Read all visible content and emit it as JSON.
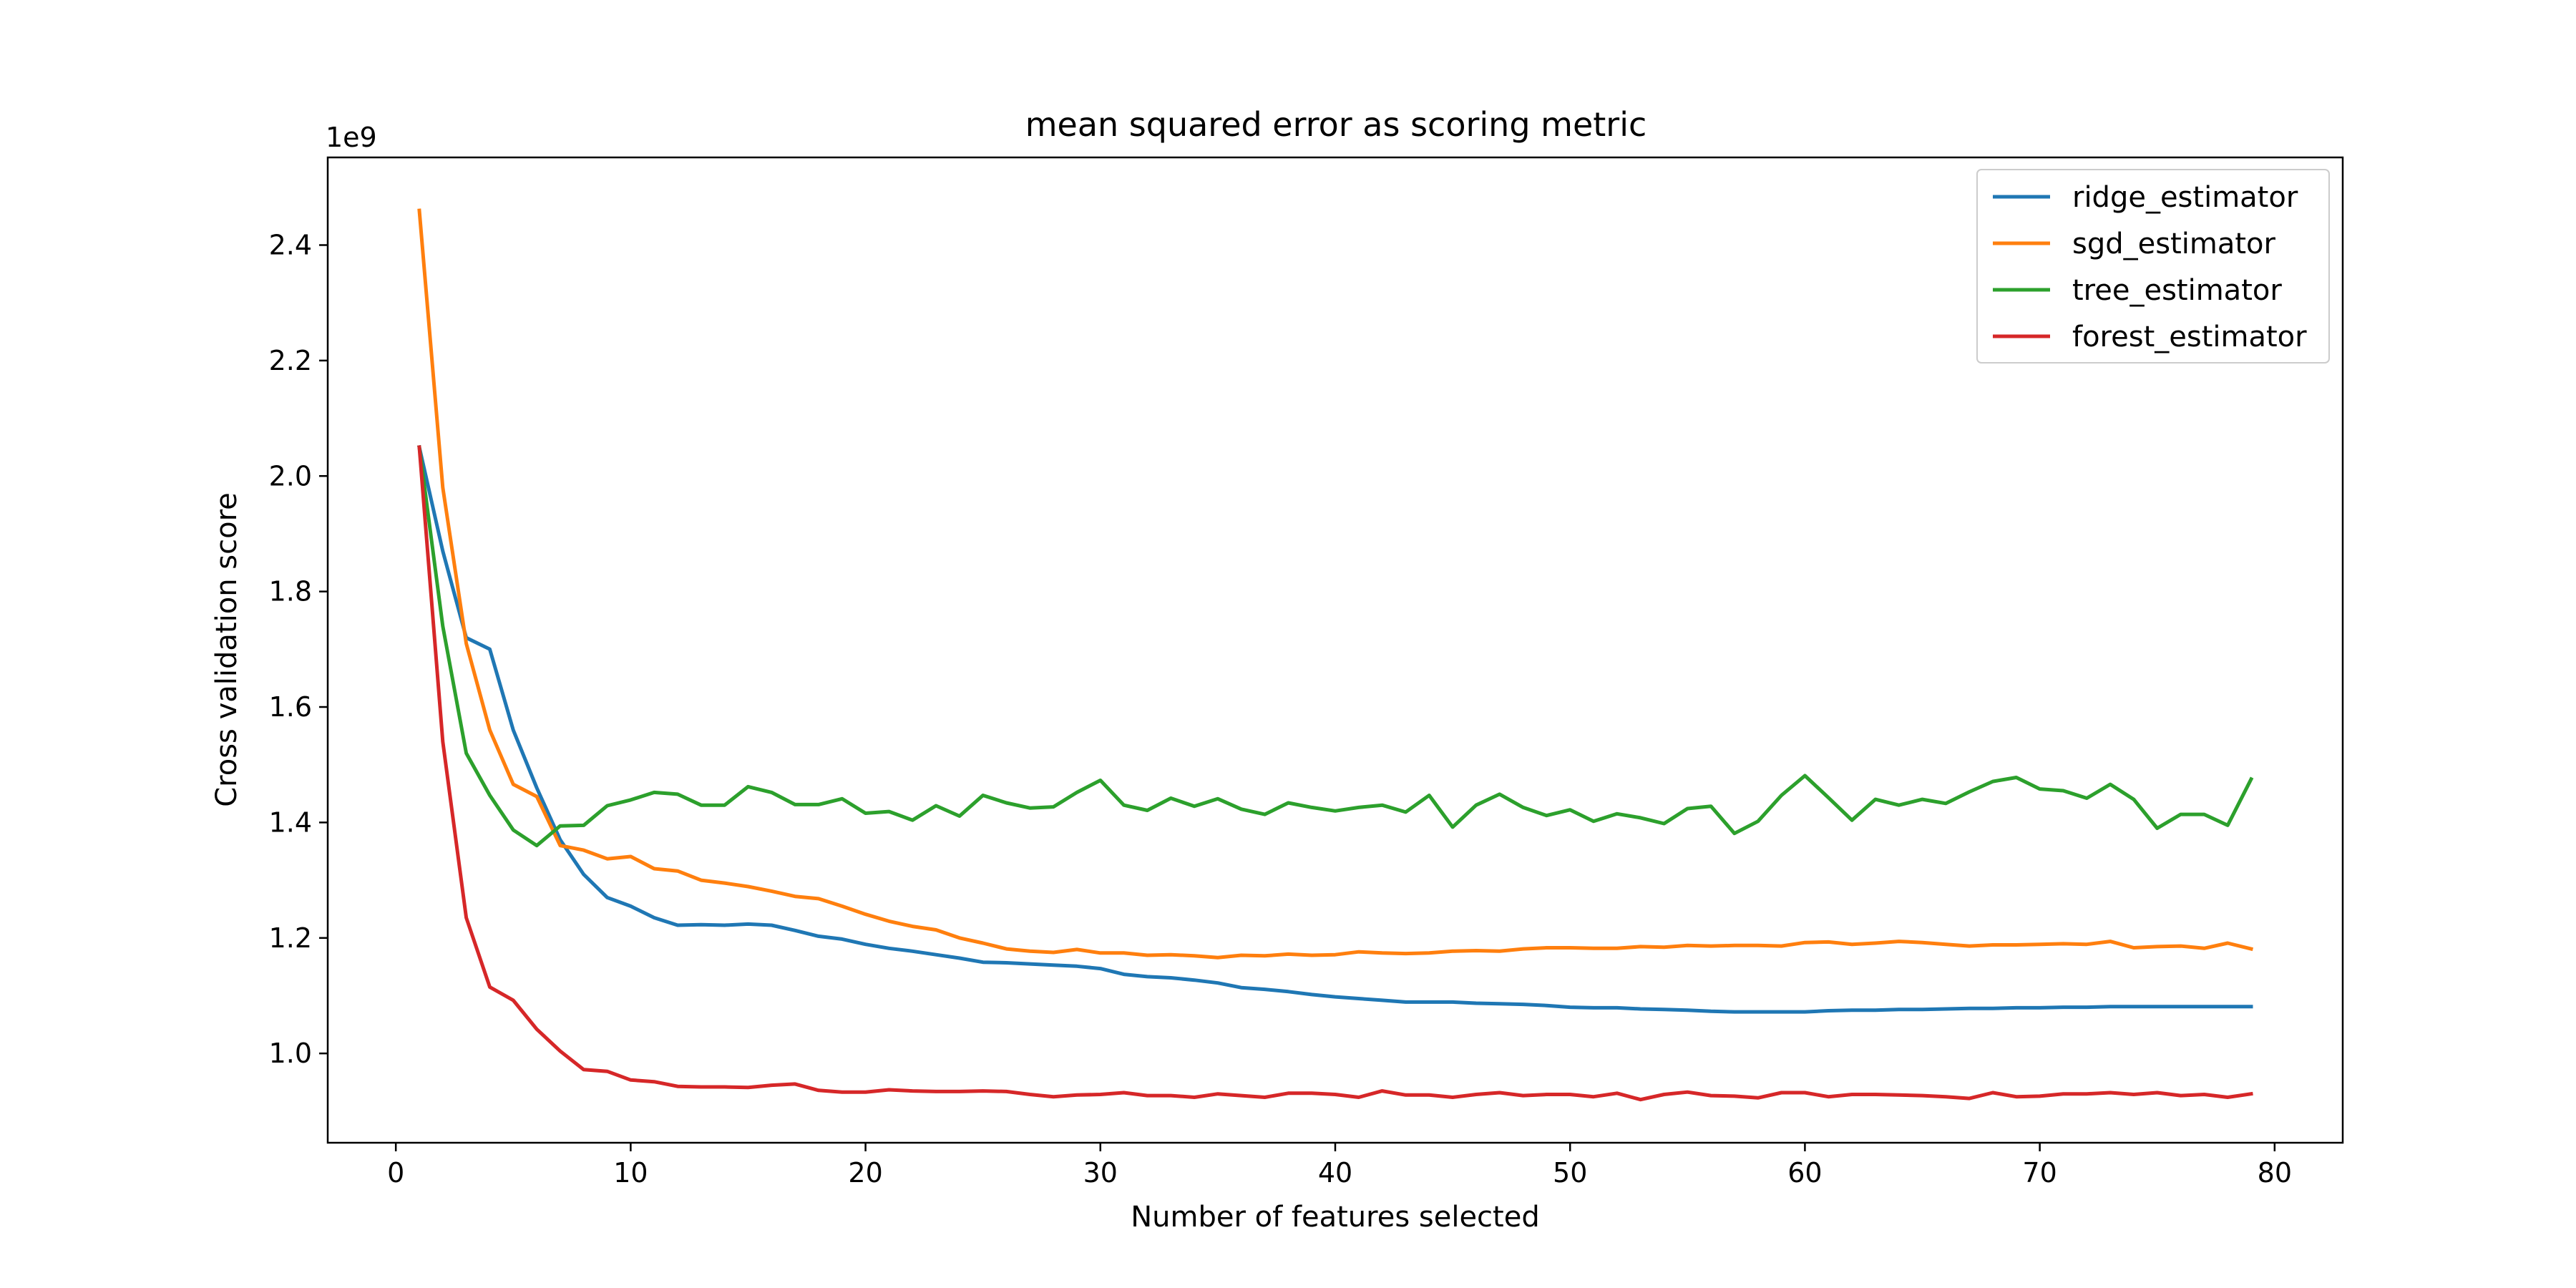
{
  "chart_data": {
    "type": "line",
    "title": "mean squared error as scoring metric",
    "xlabel": "Number of features selected",
    "ylabel": "Cross validation score",
    "y_offset_label": "1e9",
    "xlim": [
      -2.9,
      82.9
    ],
    "ylim": [
      0.8453,
      2.5518
    ],
    "xticks": [
      0,
      10,
      20,
      30,
      40,
      50,
      60,
      70,
      80
    ],
    "yticks": [
      1.0,
      1.2,
      1.4,
      1.6,
      1.8,
      2.0,
      2.2,
      2.4
    ],
    "ytick_labels": [
      "1.0",
      "1.2",
      "1.4",
      "1.6",
      "1.8",
      "2.0",
      "2.2",
      "2.4"
    ],
    "grid": false,
    "legend_position": "top-right",
    "x": [
      1,
      2,
      3,
      4,
      5,
      6,
      7,
      8,
      9,
      10,
      11,
      12,
      13,
      14,
      15,
      16,
      17,
      18,
      19,
      20,
      21,
      22,
      23,
      24,
      25,
      26,
      27,
      28,
      29,
      30,
      31,
      32,
      33,
      34,
      35,
      36,
      37,
      38,
      39,
      40,
      41,
      42,
      43,
      44,
      45,
      46,
      47,
      48,
      49,
      50,
      51,
      52,
      53,
      54,
      55,
      56,
      57,
      58,
      59,
      60,
      61,
      62,
      63,
      64,
      65,
      66,
      67,
      68,
      69,
      70,
      71,
      72,
      73,
      74,
      75,
      76,
      77,
      78,
      79
    ],
    "series": [
      {
        "name": "ridge_estimator",
        "color": "#1f77b4",
        "values": [
          2.05,
          1.87,
          1.72,
          1.7,
          1.56,
          1.46,
          1.37,
          1.31,
          1.27,
          1.255,
          1.235,
          1.222,
          1.223,
          1.222,
          1.224,
          1.222,
          1.213,
          1.203,
          1.198,
          1.189,
          1.182,
          1.177,
          1.171,
          1.165,
          1.158,
          1.157,
          1.155,
          1.153,
          1.151,
          1.147,
          1.137,
          1.133,
          1.131,
          1.127,
          1.122,
          1.114,
          1.111,
          1.107,
          1.102,
          1.098,
          1.095,
          1.092,
          1.089,
          1.089,
          1.089,
          1.087,
          1.086,
          1.085,
          1.083,
          1.08,
          1.079,
          1.079,
          1.077,
          1.076,
          1.075,
          1.073,
          1.072,
          1.072,
          1.072,
          1.072,
          1.074,
          1.075,
          1.075,
          1.076,
          1.076,
          1.077,
          1.078,
          1.078,
          1.079,
          1.079,
          1.08,
          1.08,
          1.081,
          1.081,
          1.081,
          1.081,
          1.081,
          1.081,
          1.081
        ]
      },
      {
        "name": "sgd_estimator",
        "color": "#ff7f0e",
        "values": [
          2.46,
          1.98,
          1.71,
          1.56,
          1.466,
          1.445,
          1.36,
          1.352,
          1.337,
          1.341,
          1.32,
          1.316,
          1.3,
          1.295,
          1.289,
          1.281,
          1.272,
          1.268,
          1.255,
          1.241,
          1.229,
          1.22,
          1.214,
          1.2,
          1.191,
          1.181,
          1.177,
          1.175,
          1.18,
          1.174,
          1.174,
          1.17,
          1.171,
          1.169,
          1.166,
          1.17,
          1.169,
          1.172,
          1.17,
          1.171,
          1.176,
          1.174,
          1.173,
          1.174,
          1.177,
          1.178,
          1.177,
          1.181,
          1.183,
          1.183,
          1.182,
          1.182,
          1.185,
          1.184,
          1.187,
          1.186,
          1.187,
          1.187,
          1.186,
          1.192,
          1.193,
          1.189,
          1.191,
          1.194,
          1.192,
          1.189,
          1.186,
          1.188,
          1.188,
          1.189,
          1.19,
          1.189,
          1.194,
          1.183,
          1.185,
          1.186,
          1.182,
          1.191,
          1.181
        ]
      },
      {
        "name": "tree_estimator",
        "color": "#2ca02c",
        "values": [
          2.05,
          1.74,
          1.52,
          1.447,
          1.387,
          1.36,
          1.394,
          1.395,
          1.429,
          1.439,
          1.452,
          1.449,
          1.43,
          1.43,
          1.462,
          1.452,
          1.431,
          1.431,
          1.441,
          1.416,
          1.419,
          1.404,
          1.429,
          1.411,
          1.447,
          1.434,
          1.425,
          1.427,
          1.452,
          1.473,
          1.43,
          1.421,
          1.442,
          1.428,
          1.441,
          1.423,
          1.414,
          1.434,
          1.426,
          1.42,
          1.426,
          1.43,
          1.418,
          1.447,
          1.392,
          1.43,
          1.449,
          1.426,
          1.412,
          1.422,
          1.402,
          1.415,
          1.408,
          1.398,
          1.424,
          1.428,
          1.381,
          1.402,
          1.447,
          1.481,
          1.443,
          1.404,
          1.44,
          1.43,
          1.44,
          1.433,
          1.453,
          1.471,
          1.478,
          1.458,
          1.455,
          1.442,
          1.466,
          1.44,
          1.39,
          1.414,
          1.414,
          1.395,
          1.475
        ]
      },
      {
        "name": "forest_estimator",
        "color": "#d62728",
        "values": [
          2.05,
          1.54,
          1.235,
          1.115,
          1.092,
          1.042,
          1.004,
          0.972,
          0.969,
          0.954,
          0.951,
          0.943,
          0.942,
          0.942,
          0.941,
          0.945,
          0.947,
          0.936,
          0.933,
          0.933,
          0.937,
          0.935,
          0.934,
          0.934,
          0.935,
          0.934,
          0.929,
          0.925,
          0.928,
          0.929,
          0.932,
          0.927,
          0.927,
          0.924,
          0.93,
          0.927,
          0.924,
          0.931,
          0.931,
          0.929,
          0.924,
          0.935,
          0.928,
          0.928,
          0.924,
          0.929,
          0.932,
          0.927,
          0.929,
          0.929,
          0.925,
          0.931,
          0.92,
          0.929,
          0.933,
          0.927,
          0.926,
          0.923,
          0.932,
          0.932,
          0.925,
          0.929,
          0.929,
          0.928,
          0.927,
          0.925,
          0.922,
          0.932,
          0.925,
          0.926,
          0.93,
          0.93,
          0.932,
          0.929,
          0.932,
          0.927,
          0.929,
          0.924,
          0.93
        ]
      }
    ]
  }
}
